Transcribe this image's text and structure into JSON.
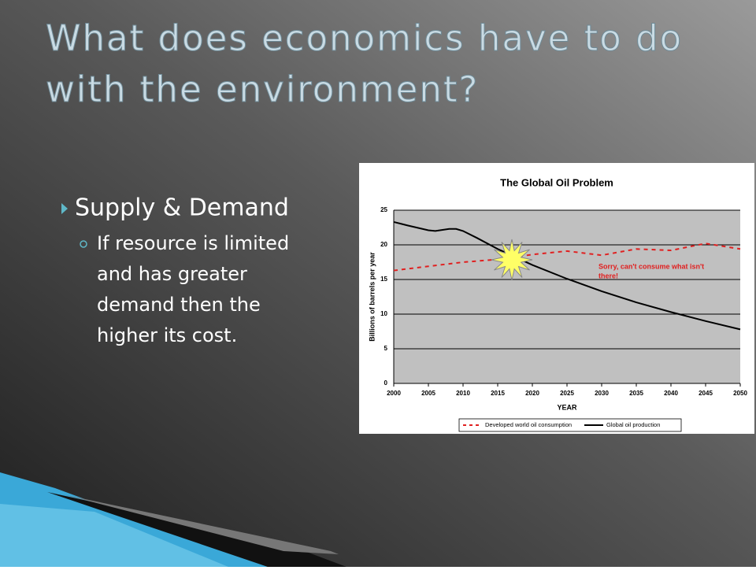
{
  "slide": {
    "title": [
      "What does economics have to do",
      "with the environment?"
    ],
    "bullets": [
      {
        "text": "Supply & Demand",
        "sub": [
          "If resource is limited",
          "and has greater",
          "demand then the",
          "higher its cost."
        ]
      }
    ]
  },
  "chart_data": {
    "type": "line",
    "title": "The Global Oil Problem",
    "x_label": "YEAR",
    "y_label": "Billions of barrels per year",
    "xlim": [
      2000,
      2050
    ],
    "xticks": [
      2000,
      2005,
      2010,
      2015,
      2020,
      2025,
      2030,
      2035,
      2040,
      2045,
      2050
    ],
    "ylim": [
      0,
      25
    ],
    "yticks": [
      0,
      5,
      10,
      15,
      20,
      25
    ],
    "grid": true,
    "series": [
      {
        "name": "Developed world oil consumption",
        "color": "#e02020",
        "dashed": true,
        "x": [
          2000,
          2005,
          2010,
          2015,
          2020,
          2025,
          2030,
          2035,
          2040,
          2045,
          2050
        ],
        "values": [
          16.3,
          16.9,
          17.5,
          17.9,
          18.6,
          19.1,
          18.5,
          19.4,
          19.2,
          20.2,
          19.4
        ]
      },
      {
        "name": "Global oil production",
        "color": "#000000",
        "dashed": false,
        "x": [
          2000,
          2002,
          2005,
          2006,
          2008,
          2009,
          2010,
          2012,
          2015,
          2020,
          2025,
          2030,
          2035,
          2040,
          2045,
          2050
        ],
        "values": [
          23.3,
          22.8,
          22.1,
          22.0,
          22.3,
          22.3,
          22.0,
          21.0,
          19.4,
          17.1,
          15.1,
          13.3,
          11.7,
          10.3,
          9.0,
          7.8
        ]
      }
    ],
    "annotation": {
      "lines": [
        "Sorry, can't consume what isn't",
        "there!"
      ],
      "color": "#e02020"
    }
  }
}
